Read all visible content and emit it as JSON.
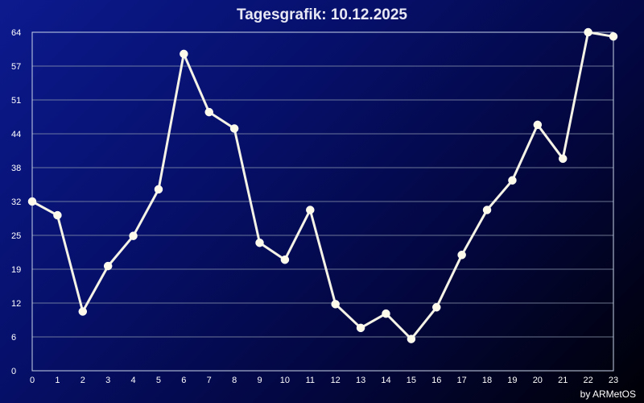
{
  "chart_data": {
    "type": "line",
    "title": "Tagesgrafik: 10.12.2025",
    "xlabel": "",
    "ylabel": "",
    "x": [
      0,
      1,
      2,
      3,
      4,
      5,
      6,
      7,
      8,
      9,
      10,
      11,
      12,
      13,
      14,
      15,
      16,
      17,
      18,
      19,
      20,
      21,
      22,
      23
    ],
    "x_tick_labels": [
      "0",
      "1",
      "2",
      "3",
      "4",
      "5",
      "6",
      "7",
      "8",
      "9",
      "10",
      "11",
      "12",
      "13",
      "14",
      "15",
      "16",
      "17",
      "18",
      "19",
      "20",
      "21",
      "22",
      "23"
    ],
    "y_tick_labels": [
      "0",
      "6",
      "12",
      "19",
      "25",
      "32",
      "38",
      "44",
      "51",
      "57",
      "64"
    ],
    "ylim": [
      0,
      64
    ],
    "grid": true,
    "legend": "none",
    "series": [
      {
        "values": [
          32.0,
          29.4,
          11.2,
          19.8,
          25.5,
          34.3,
          59.9,
          48.9,
          45.8,
          24.2,
          21.0,
          30.4,
          12.6,
          8.1,
          10.8,
          6.0,
          12.0,
          21.9,
          30.4,
          36.0,
          46.5,
          40.1,
          64.0,
          63.2
        ]
      }
    ],
    "credit": "by ARMetOS",
    "colors": {
      "line": "#f5f2e6",
      "marker": "#fdfaea",
      "grid": "#8e9ab0",
      "axis": "#c8d4e8",
      "text": "#ffffff",
      "background_start": "#0c1a8e",
      "background_end": "#000005"
    }
  }
}
